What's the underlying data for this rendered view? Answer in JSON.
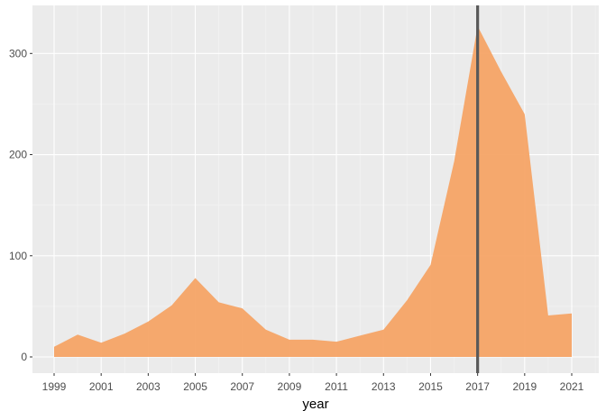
{
  "chart_data": {
    "type": "area",
    "title": "",
    "xlabel": "year",
    "ylabel": "",
    "x": [
      1999,
      2000,
      2001,
      2002,
      2003,
      2004,
      2005,
      2006,
      2007,
      2008,
      2009,
      2010,
      2011,
      2012,
      2013,
      2014,
      2015,
      2016,
      2017,
      2018,
      2019,
      2020,
      2021
    ],
    "series": [
      {
        "values": [
          10,
          22,
          14,
          23,
          35,
          51,
          78,
          54,
          48,
          27,
          17,
          17,
          15,
          21,
          27,
          56,
          91,
          193,
          327,
          282,
          240,
          41,
          43
        ]
      }
    ],
    "xlim": [
      1999,
      2021
    ],
    "ylim": [
      0,
      327
    ],
    "x_ticks": [
      1999,
      2001,
      2003,
      2005,
      2007,
      2009,
      2011,
      2013,
      2015,
      2017,
      2019,
      2021
    ],
    "x_tick_labels": [
      "1999",
      "2001",
      "2003",
      "2005",
      "2007",
      "2009",
      "2011",
      "2013",
      "2015",
      "2017",
      "2019",
      "2021"
    ],
    "y_ticks": [
      0,
      100,
      200,
      300
    ],
    "y_tick_labels": [
      "0",
      "100",
      "200",
      "300"
    ],
    "grid": true,
    "reference_line": {
      "orientation": "vertical",
      "x": 2017
    },
    "colors": {
      "fill": "#f5a262",
      "panel_background": "#ebebeb",
      "grid_major": "#ffffff",
      "grid_minor": "#f3f3f3",
      "reference_line": "#595959",
      "tick_label": "#4d4d4d",
      "tick_mark": "#333333"
    },
    "fill_opacity": 0.92
  }
}
